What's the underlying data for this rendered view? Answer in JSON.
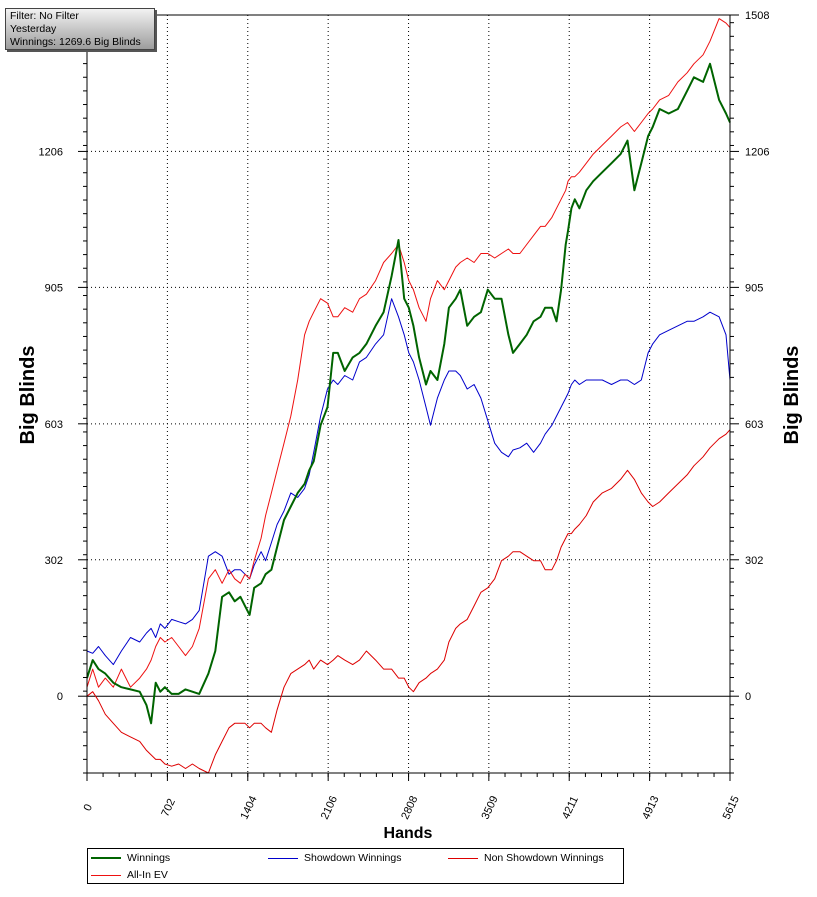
{
  "info": {
    "filter": "Filter: No Filter",
    "period": "Yesterday",
    "winnings": "Winnings: 1269.6 Big Blinds"
  },
  "chart_data": {
    "type": "line",
    "xlabel": "Hands",
    "ylabel": "Big Blinds",
    "ylabel_right": "Big Blinds",
    "xlim": [
      0,
      5615
    ],
    "ylim": [
      -170,
      1508
    ],
    "x_ticks": [
      "0",
      "702",
      "1404",
      "2106",
      "2808",
      "3509",
      "4211",
      "4913",
      "5615"
    ],
    "y_ticks": [
      "0",
      "302",
      "603",
      "905",
      "1206",
      "1508"
    ],
    "y_ticks_right": [
      "0",
      "302",
      "603",
      "905",
      "1206",
      "1508"
    ],
    "grid": true,
    "legend_position": "bottom",
    "series": [
      {
        "name": "Winnings",
        "color": "#006400",
        "x": [
          0,
          50,
          100,
          160,
          230,
          300,
          380,
          460,
          520,
          560,
          600,
          640,
          680,
          740,
          800,
          860,
          920,
          980,
          1060,
          1120,
          1180,
          1240,
          1290,
          1340,
          1380,
          1420,
          1460,
          1520,
          1560,
          1610,
          1660,
          1720,
          1780,
          1840,
          1900,
          1940,
          1980,
          2040,
          2100,
          2150,
          2190,
          2250,
          2320,
          2380,
          2440,
          2520,
          2590,
          2660,
          2720,
          2770,
          2810,
          2850,
          2900,
          2960,
          3000,
          3060,
          3120,
          3160,
          3220,
          3260,
          3320,
          3380,
          3440,
          3500,
          3560,
          3620,
          3680,
          3720,
          3780,
          3840,
          3900,
          3960,
          4000,
          4060,
          4100,
          4140,
          4180,
          4200,
          4230,
          4260,
          4300,
          4360,
          4420,
          4500,
          4580,
          4660,
          4720,
          4780,
          4840,
          4900,
          4940,
          5000,
          5080,
          5160,
          5240,
          5300,
          5380,
          5440,
          5520,
          5580,
          5615
        ],
        "y": [
          40,
          80,
          60,
          50,
          30,
          20,
          15,
          10,
          -20,
          -60,
          30,
          10,
          20,
          5,
          5,
          15,
          10,
          5,
          50,
          100,
          220,
          230,
          210,
          220,
          200,
          180,
          240,
          250,
          270,
          280,
          330,
          390,
          420,
          450,
          470,
          500,
          520,
          600,
          640,
          760,
          760,
          720,
          750,
          760,
          780,
          820,
          850,
          930,
          1010,
          880,
          860,
          820,
          750,
          690,
          720,
          700,
          780,
          860,
          880,
          900,
          820,
          840,
          850,
          900,
          880,
          880,
          800,
          760,
          780,
          800,
          830,
          840,
          860,
          860,
          830,
          900,
          1000,
          1030,
          1080,
          1100,
          1080,
          1120,
          1140,
          1160,
          1180,
          1200,
          1230,
          1120,
          1180,
          1240,
          1260,
          1300,
          1290,
          1300,
          1340,
          1370,
          1360,
          1400,
          1320,
          1290,
          1270
        ]
      },
      {
        "name": "Showdown Winnings",
        "color": "#0000cc",
        "x": [
          0,
          50,
          100,
          160,
          230,
          300,
          380,
          460,
          520,
          560,
          600,
          640,
          680,
          740,
          800,
          860,
          920,
          980,
          1060,
          1120,
          1180,
          1240,
          1290,
          1340,
          1380,
          1420,
          1460,
          1520,
          1560,
          1610,
          1660,
          1720,
          1780,
          1840,
          1900,
          1940,
          1980,
          2040,
          2100,
          2150,
          2190,
          2250,
          2320,
          2380,
          2440,
          2520,
          2590,
          2660,
          2720,
          2770,
          2810,
          2850,
          2900,
          2960,
          3000,
          3060,
          3120,
          3160,
          3220,
          3260,
          3320,
          3380,
          3440,
          3500,
          3560,
          3620,
          3680,
          3720,
          3780,
          3840,
          3900,
          3960,
          4000,
          4060,
          4100,
          4140,
          4180,
          4200,
          4230,
          4260,
          4300,
          4360,
          4420,
          4500,
          4580,
          4660,
          4720,
          4780,
          4840,
          4900,
          4940,
          5000,
          5080,
          5160,
          5240,
          5300,
          5380,
          5440,
          5520,
          5580,
          5615
        ],
        "y": [
          100,
          95,
          110,
          90,
          70,
          100,
          130,
          120,
          140,
          150,
          130,
          160,
          150,
          170,
          165,
          160,
          170,
          190,
          310,
          320,
          310,
          270,
          280,
          280,
          270,
          260,
          290,
          320,
          300,
          340,
          380,
          410,
          450,
          440,
          460,
          490,
          540,
          620,
          680,
          700,
          690,
          710,
          700,
          740,
          750,
          780,
          800,
          880,
          840,
          800,
          760,
          740,
          700,
          640,
          600,
          660,
          700,
          720,
          720,
          710,
          680,
          690,
          660,
          610,
          560,
          540,
          530,
          545,
          550,
          560,
          540,
          560,
          580,
          600,
          620,
          640,
          660,
          670,
          690,
          700,
          690,
          700,
          700,
          700,
          690,
          700,
          700,
          690,
          700,
          760,
          780,
          800,
          810,
          820,
          830,
          830,
          840,
          850,
          840,
          800,
          700
        ]
      },
      {
        "name": "Non Showdown Winnings",
        "color": "#dd0000",
        "x": [
          0,
          50,
          100,
          160,
          230,
          300,
          380,
          460,
          520,
          560,
          600,
          640,
          680,
          740,
          800,
          860,
          920,
          980,
          1060,
          1120,
          1180,
          1240,
          1290,
          1340,
          1380,
          1420,
          1460,
          1520,
          1560,
          1610,
          1660,
          1720,
          1780,
          1840,
          1900,
          1940,
          1980,
          2040,
          2100,
          2150,
          2190,
          2250,
          2320,
          2380,
          2440,
          2520,
          2590,
          2660,
          2720,
          2770,
          2810,
          2850,
          2900,
          2960,
          3000,
          3060,
          3120,
          3160,
          3220,
          3260,
          3320,
          3380,
          3440,
          3500,
          3560,
          3620,
          3680,
          3720,
          3780,
          3840,
          3900,
          3960,
          4000,
          4060,
          4100,
          4140,
          4180,
          4200,
          4230,
          4260,
          4300,
          4360,
          4420,
          4500,
          4580,
          4660,
          4720,
          4780,
          4840,
          4900,
          4940,
          5000,
          5080,
          5160,
          5240,
          5300,
          5380,
          5440,
          5520,
          5580,
          5615
        ],
        "y": [
          0,
          10,
          -10,
          -40,
          -60,
          -80,
          -90,
          -100,
          -120,
          -130,
          -140,
          -140,
          -150,
          -155,
          -150,
          -160,
          -150,
          -160,
          -170,
          -130,
          -100,
          -70,
          -60,
          -60,
          -60,
          -70,
          -60,
          -60,
          -70,
          -80,
          -30,
          20,
          50,
          60,
          70,
          80,
          60,
          80,
          70,
          80,
          90,
          80,
          70,
          80,
          100,
          80,
          60,
          60,
          40,
          40,
          20,
          10,
          30,
          40,
          50,
          60,
          80,
          120,
          150,
          160,
          170,
          200,
          230,
          240,
          260,
          300,
          310,
          320,
          320,
          310,
          300,
          300,
          280,
          280,
          300,
          330,
          350,
          360,
          360,
          370,
          380,
          400,
          430,
          450,
          460,
          480,
          500,
          480,
          450,
          430,
          420,
          430,
          450,
          470,
          490,
          510,
          530,
          550,
          570,
          580,
          590
        ]
      },
      {
        "name": "All-In EV",
        "color": "#ee1111",
        "x": [
          0,
          50,
          100,
          160,
          230,
          300,
          380,
          460,
          520,
          560,
          600,
          640,
          680,
          740,
          800,
          860,
          920,
          980,
          1060,
          1120,
          1180,
          1240,
          1290,
          1340,
          1380,
          1420,
          1460,
          1520,
          1560,
          1610,
          1660,
          1720,
          1780,
          1840,
          1900,
          1940,
          1980,
          2040,
          2100,
          2150,
          2190,
          2250,
          2320,
          2380,
          2440,
          2520,
          2590,
          2660,
          2720,
          2770,
          2810,
          2850,
          2900,
          2960,
          3000,
          3060,
          3120,
          3160,
          3220,
          3260,
          3320,
          3380,
          3440,
          3500,
          3560,
          3620,
          3680,
          3720,
          3780,
          3840,
          3900,
          3960,
          4000,
          4060,
          4100,
          4140,
          4180,
          4200,
          4230,
          4260,
          4300,
          4360,
          4420,
          4500,
          4580,
          4660,
          4720,
          4780,
          4840,
          4900,
          4940,
          5000,
          5080,
          5160,
          5240,
          5300,
          5380,
          5440,
          5520,
          5580,
          5615
        ],
        "y": [
          20,
          60,
          20,
          40,
          20,
          60,
          20,
          40,
          60,
          80,
          110,
          130,
          120,
          130,
          110,
          90,
          110,
          150,
          260,
          280,
          250,
          280,
          260,
          250,
          270,
          260,
          300,
          350,
          400,
          450,
          500,
          560,
          620,
          700,
          800,
          830,
          850,
          880,
          870,
          840,
          840,
          860,
          850,
          880,
          890,
          920,
          960,
          980,
          1000,
          960,
          920,
          900,
          860,
          830,
          880,
          920,
          900,
          920,
          950,
          960,
          970,
          960,
          980,
          980,
          970,
          980,
          990,
          980,
          980,
          1000,
          1020,
          1040,
          1040,
          1060,
          1080,
          1100,
          1120,
          1140,
          1150,
          1150,
          1160,
          1180,
          1200,
          1220,
          1240,
          1260,
          1270,
          1250,
          1270,
          1290,
          1300,
          1320,
          1330,
          1360,
          1380,
          1400,
          1420,
          1450,
          1500,
          1490,
          1480
        ]
      }
    ]
  }
}
